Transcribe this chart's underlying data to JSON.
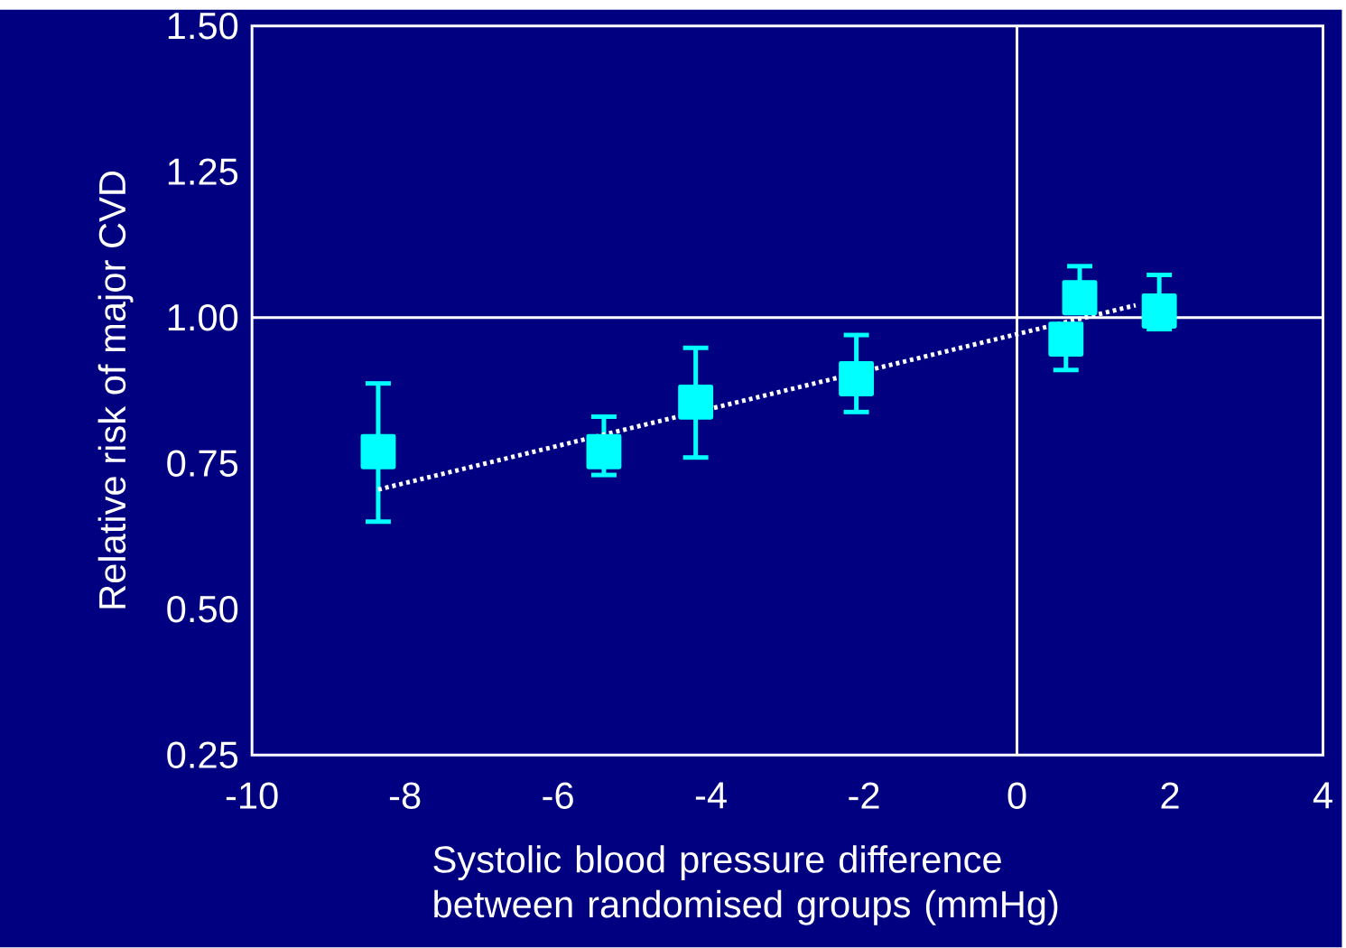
{
  "chart_data": {
    "type": "scatter",
    "xlabel": "Systolic blood pressure difference between randomised groups (mmHg)",
    "ylabel": "Relative risk of major CVD",
    "xlim": [
      -10,
      4
    ],
    "xticks": [
      -10,
      -8,
      -6,
      -4,
      -2,
      0,
      2,
      4
    ],
    "ylim": [
      0.25,
      1.5
    ],
    "yticks": [
      {
        "value": 0.25,
        "label": "0.25"
      },
      {
        "value": 0.5,
        "label": "0.50"
      },
      {
        "value": 0.75,
        "label": "0.75"
      },
      {
        "value": 1.0,
        "label": "1.00"
      },
      {
        "value": 1.25,
        "label": "1.25"
      },
      {
        "value": 1.5,
        "label": "1.50"
      }
    ],
    "grid": false,
    "ref_lines": [
      {
        "axis": "y",
        "value": 1.0,
        "color": "#ffffff"
      },
      {
        "axis": "x",
        "value": 0,
        "color": "#ffffff"
      }
    ],
    "series": [
      {
        "type": "scatter",
        "color": "#00ffff",
        "marker": "square",
        "x": [
          -8.35,
          -5.4,
          -4.2,
          -2.1,
          0.64,
          0.82,
          1.86
        ],
        "values": [
          0.77,
          0.77,
          0.855,
          0.895,
          0.963,
          1.034,
          1.011
        ],
        "errors": [
          [
            0.65,
            0.887
          ],
          [
            0.73,
            0.83
          ],
          [
            0.76,
            0.948
          ],
          [
            0.838,
            0.97
          ],
          [
            0.91,
            0.963
          ],
          [
            1.034,
            1.088
          ],
          [
            0.98,
            1.073
          ]
        ]
      },
      {
        "type": "line",
        "color": "#ffffff",
        "line_style": "dotted",
        "marker": "none",
        "x": [
          -8.35,
          1.55
        ],
        "values": [
          0.705,
          1.021
        ]
      }
    ]
  }
}
